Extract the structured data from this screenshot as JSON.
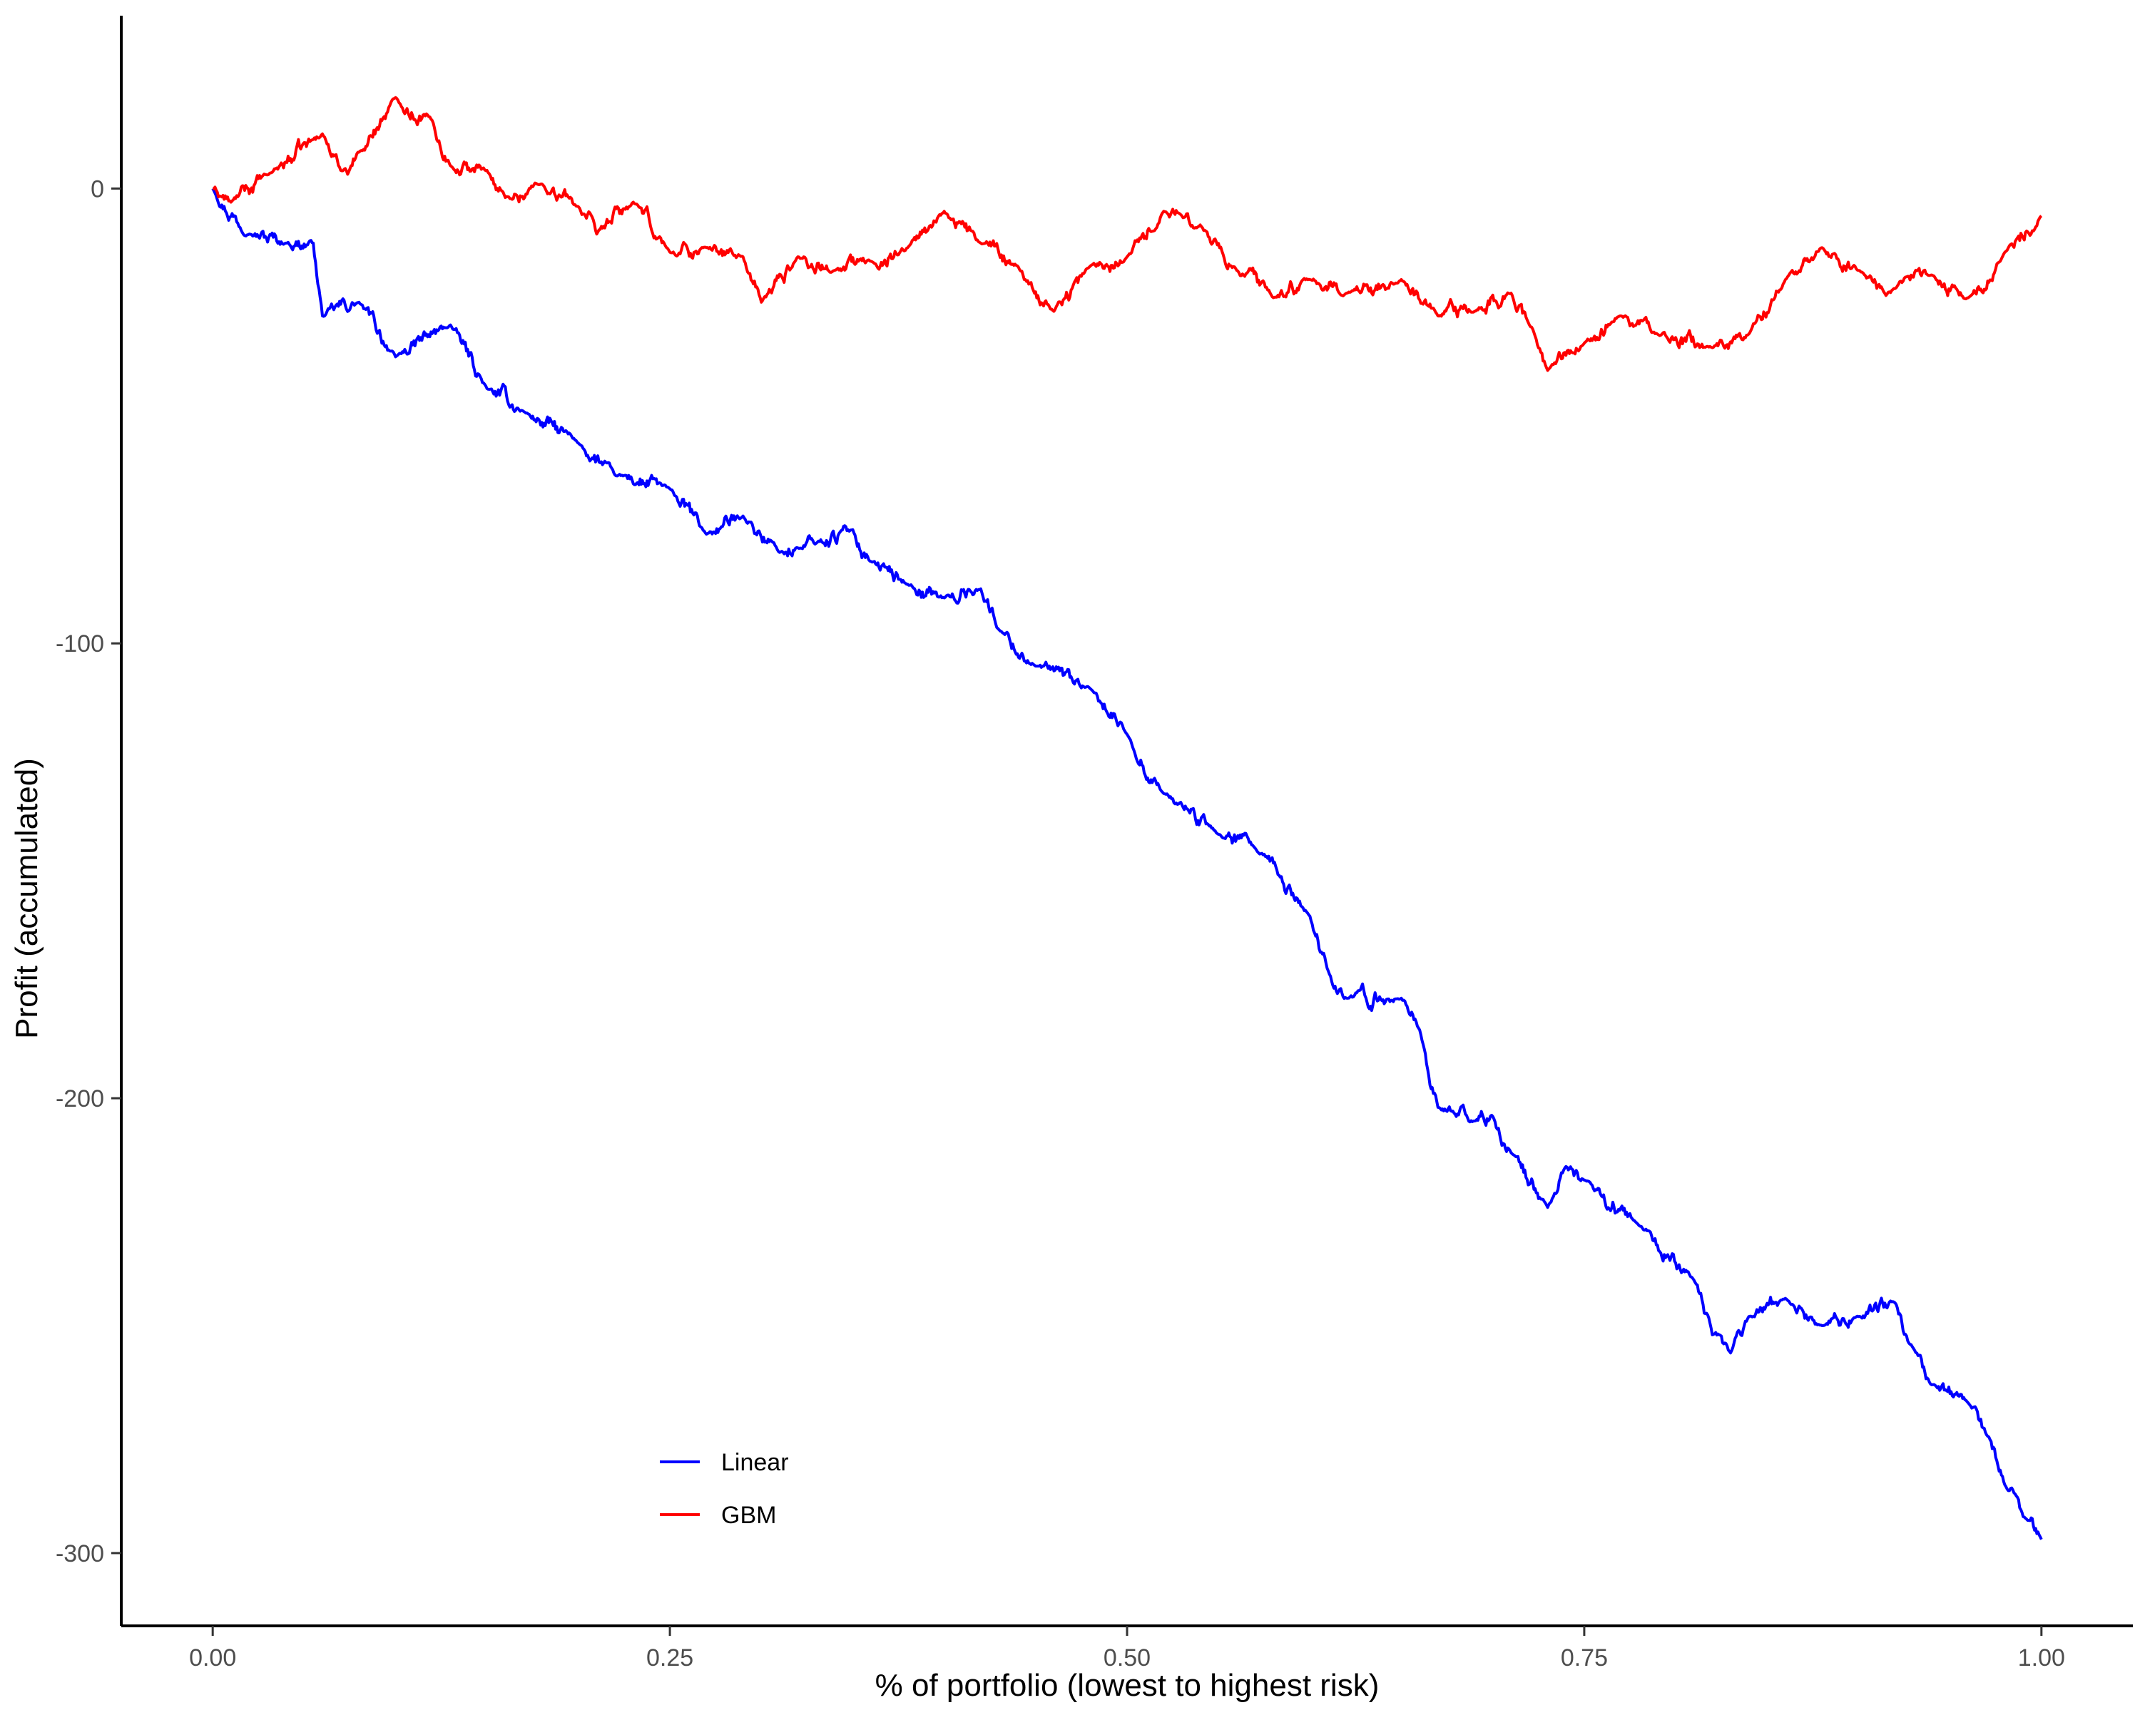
{
  "chart_data": {
    "type": "line",
    "xlabel": "% of portfolio (lowest to highest risk)",
    "ylabel": "Profit (accumulated)",
    "xlim": [
      -0.05,
      1.05
    ],
    "ylim": [
      -316,
      38
    ],
    "x_ticks": [
      0.0,
      0.25,
      0.5,
      0.75,
      1.0
    ],
    "x_tick_labels": [
      "0.00",
      "0.25",
      "0.50",
      "0.75",
      "1.00"
    ],
    "y_ticks": [
      0,
      -100,
      -200,
      -300
    ],
    "y_tick_labels": [
      "0",
      "-100",
      "-200",
      "-300"
    ],
    "grid": false,
    "legend_position": "bottom-center",
    "series": [
      {
        "name": "Linear",
        "color": "#0000ff",
        "x": [
          0.0,
          0.02,
          0.04,
          0.055,
          0.06,
          0.08,
          0.1,
          0.13,
          0.15,
          0.17,
          0.2,
          0.22,
          0.25,
          0.27,
          0.29,
          0.31,
          0.32,
          0.33,
          0.35,
          0.36,
          0.38,
          0.4,
          0.42,
          0.43,
          0.45,
          0.48,
          0.5,
          0.52,
          0.55,
          0.57,
          0.6,
          0.61,
          0.62,
          0.65,
          0.66,
          0.67,
          0.69,
          0.7,
          0.71,
          0.73,
          0.74,
          0.75,
          0.78,
          0.81,
          0.82,
          0.83,
          0.84,
          0.86,
          0.88,
          0.9,
          0.92,
          0.93,
          0.94,
          0.96,
          0.97,
          0.98,
          0.99,
          1.0
        ],
        "y": [
          0,
          -10,
          -12,
          -12,
          -28,
          -25,
          -37,
          -30,
          -44,
          -49,
          -56,
          -63,
          -66,
          -76,
          -72,
          -80,
          -79,
          -78,
          -75,
          -82,
          -87,
          -90,
          -88,
          -97,
          -105,
          -110,
          -120,
          -133,
          -142,
          -145,
          -160,
          -172,
          -178,
          -178,
          -185,
          -202,
          -205,
          -204,
          -212,
          -224,
          -215,
          -218,
          -228,
          -240,
          -252,
          -256,
          -248,
          -244,
          -250,
          -248,
          -245,
          -255,
          -263,
          -267,
          -274,
          -285,
          -292,
          -297
        ]
      },
      {
        "name": "GBM",
        "color": "#ff0000",
        "x": [
          0.0,
          0.01,
          0.03,
          0.06,
          0.07,
          0.08,
          0.1,
          0.12,
          0.13,
          0.15,
          0.16,
          0.18,
          0.2,
          0.21,
          0.23,
          0.25,
          0.27,
          0.29,
          0.3,
          0.32,
          0.34,
          0.36,
          0.38,
          0.4,
          0.42,
          0.44,
          0.46,
          0.48,
          0.5,
          0.52,
          0.54,
          0.56,
          0.58,
          0.6,
          0.62,
          0.65,
          0.67,
          0.69,
          0.71,
          0.72,
          0.73,
          0.75,
          0.77,
          0.79,
          0.82,
          0.84,
          0.86,
          0.88,
          0.9,
          0.92,
          0.94,
          0.96,
          0.98,
          1.0
        ],
        "y": [
          0,
          -3,
          3,
          12,
          4,
          8,
          20,
          15,
          5,
          4,
          -2,
          1,
          -4,
          -10,
          -3,
          -14,
          -13,
          -15,
          -25,
          -15,
          -18,
          -16,
          -13,
          -5,
          -12,
          -17,
          -27,
          -17,
          -15,
          -5,
          -8,
          -18,
          -24,
          -20,
          -23,
          -20,
          -28,
          -27,
          -23,
          -30,
          -40,
          -34,
          -28,
          -32,
          -35,
          -32,
          -20,
          -13,
          -18,
          -22,
          -19,
          -24,
          -14,
          -6
        ]
      }
    ]
  }
}
